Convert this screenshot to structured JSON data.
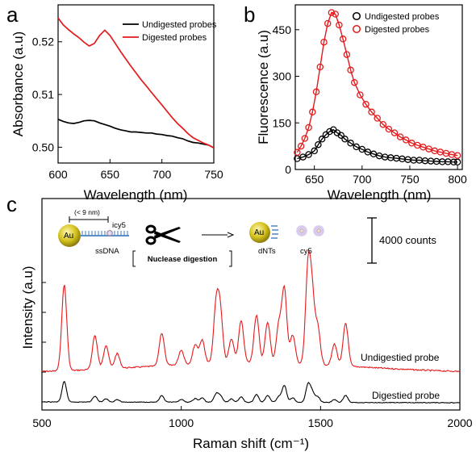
{
  "panels": {
    "a": "a",
    "b": "b",
    "c": "c"
  },
  "chart_data": [
    {
      "type": "line",
      "panel": "a",
      "xlabel": "Wavelength (nm)",
      "ylabel": "Absorbance (a.u)",
      "xlim": [
        600,
        750
      ],
      "ylim": [
        0.497,
        0.527
      ],
      "xticks": [
        600,
        650,
        700,
        750
      ],
      "yticks": [
        0.5,
        0.51,
        0.52
      ],
      "xtick_labels": [
        "600",
        "650",
        "700",
        "750"
      ],
      "ytick_labels": [
        "0.50",
        "0.51",
        "0.52"
      ],
      "legend_position": "top-right",
      "series": [
        {
          "name": "Undigested probes",
          "color": "#000000",
          "x": [
            600,
            605,
            610,
            615,
            620,
            625,
            630,
            635,
            640,
            645,
            650,
            655,
            660,
            665,
            670,
            675,
            680,
            685,
            690,
            695,
            700,
            705,
            710,
            715,
            720,
            725,
            730,
            735,
            740,
            745,
            750
          ],
          "y": [
            0.5053,
            0.5049,
            0.5046,
            0.5045,
            0.5047,
            0.505,
            0.5051,
            0.505,
            0.5046,
            0.5043,
            0.504,
            0.5036,
            0.5033,
            0.5031,
            0.5029,
            0.5029,
            0.5028,
            0.5027,
            0.5027,
            0.5025,
            0.5024,
            0.5022,
            0.5021,
            0.5018,
            0.5016,
            0.5012,
            0.5009,
            0.5008,
            0.5006,
            0.5004,
            0.4999
          ]
        },
        {
          "name": "Digested probes",
          "color": "#e41a1c",
          "x": [
            600,
            605,
            610,
            615,
            620,
            625,
            630,
            635,
            640,
            645,
            650,
            655,
            660,
            665,
            670,
            675,
            680,
            685,
            690,
            695,
            700,
            705,
            710,
            715,
            720,
            725,
            730,
            735,
            740,
            745,
            750
          ],
          "y": [
            0.5245,
            0.5232,
            0.5223,
            0.5215,
            0.5208,
            0.5199,
            0.5192,
            0.5197,
            0.5212,
            0.5222,
            0.5212,
            0.5197,
            0.5182,
            0.5168,
            0.5154,
            0.5141,
            0.5128,
            0.5116,
            0.5104,
            0.5092,
            0.508,
            0.5068,
            0.5056,
            0.5045,
            0.5036,
            0.5026,
            0.5018,
            0.5013,
            0.5008,
            0.5004,
            0.4999
          ]
        }
      ]
    },
    {
      "type": "scatter",
      "panel": "b",
      "xlabel": "Wavelength (nm)",
      "ylabel": "Fluorescence (a.u)",
      "xlim": [
        630,
        805
      ],
      "ylim": [
        0,
        530
      ],
      "xticks": [
        650,
        700,
        750,
        800
      ],
      "yticks": [
        0,
        150,
        300,
        450
      ],
      "xtick_labels": [
        "650",
        "700",
        "750",
        "800"
      ],
      "ytick_labels": [
        "0",
        "150",
        "300",
        "450"
      ],
      "legend_position": "top-right",
      "series": [
        {
          "name": "Undigested probes",
          "color": "#000000",
          "marker": "open-circle",
          "x": [
            632,
            638,
            644,
            650,
            654,
            658,
            662,
            666,
            670,
            674,
            678,
            682,
            688,
            694,
            700,
            706,
            712,
            718,
            724,
            730,
            736,
            742,
            748,
            754,
            760,
            766,
            772,
            778,
            784,
            790,
            796,
            800
          ],
          "y": [
            35,
            40,
            48,
            60,
            80,
            98,
            112,
            122,
            128,
            118,
            110,
            98,
            85,
            73,
            65,
            56,
            50,
            44,
            40,
            38,
            36,
            34,
            32,
            30,
            30,
            28,
            27,
            26,
            25,
            25,
            24,
            24
          ]
        },
        {
          "name": "Digested probes",
          "color": "#e41a1c",
          "marker": "open-circle",
          "x": [
            632,
            636,
            640,
            644,
            648,
            652,
            656,
            660,
            664,
            668,
            672,
            676,
            680,
            684,
            688,
            692,
            698,
            704,
            710,
            716,
            722,
            728,
            734,
            740,
            746,
            752,
            758,
            764,
            770,
            776,
            782,
            788,
            794,
            800
          ],
          "y": [
            55,
            75,
            100,
            135,
            185,
            250,
            330,
            410,
            470,
            505,
            500,
            465,
            420,
            370,
            320,
            280,
            240,
            210,
            185,
            165,
            145,
            130,
            118,
            105,
            95,
            85,
            78,
            72,
            66,
            60,
            56,
            52,
            48,
            45
          ]
        }
      ]
    },
    {
      "type": "line",
      "panel": "c",
      "xlabel": "Raman shift (cm⁻¹)",
      "ylabel": "Intensity (a.u)",
      "xlim": [
        500,
        2000
      ],
      "xticks": [
        500,
        1000,
        1500,
        2000
      ],
      "xtick_labels": [
        "500",
        "1000",
        "1500",
        "2000"
      ],
      "scale_bar": "4000 counts",
      "peaks_cm": [
        580,
        690,
        730,
        770,
        930,
        1000,
        1050,
        1075,
        1125,
        1140,
        1180,
        1215,
        1270,
        1310,
        1350,
        1370,
        1400,
        1455,
        1470,
        1490,
        1550,
        1590
      ],
      "series": [
        {
          "name": "Undigestied probe",
          "color": "#e41a1c",
          "peak_heights_counts": [
            7600,
            3000,
            2100,
            1300,
            2900,
            1300,
            1700,
            2100,
            4900,
            4400,
            2100,
            3700,
            4200,
            3600,
            3300,
            6500,
            2500,
            8200,
            5500,
            3200,
            1900,
            3800
          ]
        },
        {
          "name": "Digestied probe",
          "color": "#000000",
          "peak_heights_counts": [
            1800,
            520,
            280,
            220,
            560,
            250,
            320,
            380,
            700,
            560,
            300,
            480,
            700,
            620,
            500,
            1500,
            400,
            1550,
            900,
            500,
            260,
            640
          ]
        }
      ]
    }
  ],
  "schematic": {
    "au_label": "Au",
    "size_label": "(< 9 nm)",
    "icy5_label": "icy5",
    "ssdna_label": "ssDNA",
    "nuclease_label": "Nuclease digestion",
    "dnts_label": "dNTs",
    "cy5_label": "cy5",
    "gold_color": "#d4c21c",
    "dna_color": "#5a8fc8",
    "dye_color": "#b49adc"
  }
}
